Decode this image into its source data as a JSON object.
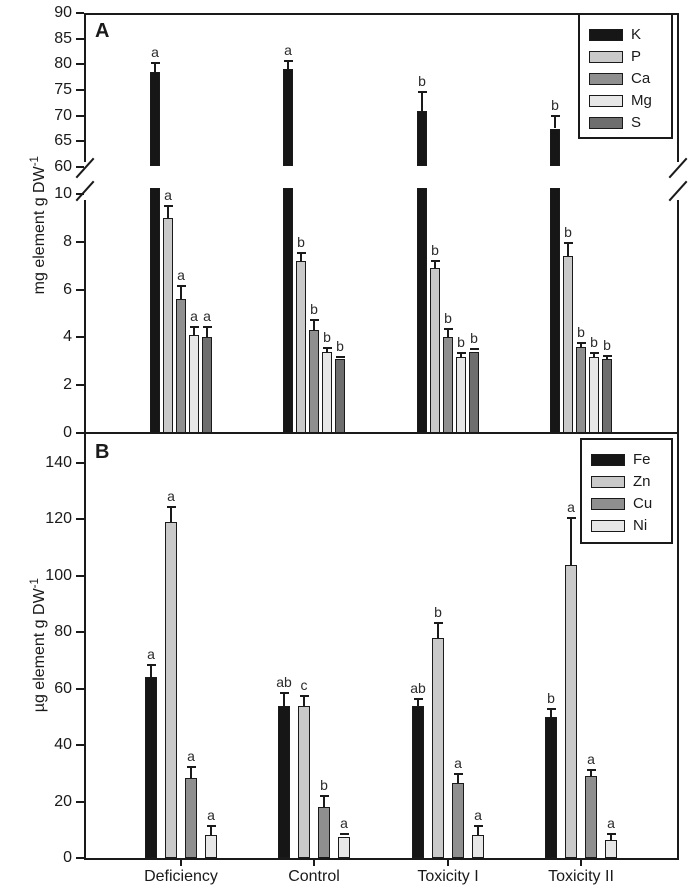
{
  "figure": {
    "panels": [
      {
        "label": "A",
        "ylabel_base": "mg element g DW",
        "ylabel_exp": "-1"
      },
      {
        "label": "B",
        "ylabel_base": "µg element g DW",
        "ylabel_exp": "-1"
      }
    ]
  },
  "chart_data": [
    {
      "type": "bar",
      "panel": "A",
      "ylabel": "mg element g DW-1",
      "categories": [
        "Deficiency",
        "Control",
        "Toxicity I",
        "Toxicity II"
      ],
      "axis_break": true,
      "upper_ylim": [
        60,
        90
      ],
      "upper_yticks": [
        90,
        85,
        80,
        75,
        70,
        65,
        60
      ],
      "lower_ylim": [
        0,
        10
      ],
      "lower_yticks": [
        10,
        8,
        6,
        4,
        2,
        0
      ],
      "legend_position": "upper right",
      "grid": false,
      "series": [
        {
          "name": "K",
          "color": "#161616",
          "values": [
            78.5,
            79.0,
            71.0,
            67.5
          ],
          "errors": [
            1.6,
            1.5,
            3.4,
            2.2
          ],
          "letters": [
            "a",
            "a",
            "b",
            "b"
          ]
        },
        {
          "name": "P",
          "color": "#c9c9c9",
          "values": [
            9.0,
            7.2,
            6.9,
            7.4
          ],
          "errors": [
            0.45,
            0.3,
            0.25,
            0.5
          ],
          "letters": [
            "a",
            "b",
            "b",
            "b"
          ]
        },
        {
          "name": "Ca",
          "color": "#8f8f8f",
          "values": [
            5.6,
            4.3,
            4.0,
            3.6
          ],
          "errors": [
            0.5,
            0.4,
            0.3,
            0.12
          ],
          "letters": [
            "a",
            "b",
            "b",
            "b"
          ]
        },
        {
          "name": "Mg",
          "color": "#e7e7e7",
          "values": [
            4.1,
            3.4,
            3.2,
            3.2
          ],
          "errors": [
            0.3,
            0.12,
            0.12,
            0.12
          ],
          "letters": [
            "a",
            "b",
            "b",
            "b"
          ]
        },
        {
          "name": "S",
          "color": "#6e6e6e",
          "values": [
            4.0,
            3.1,
            3.4,
            3.1
          ],
          "errors": [
            0.4,
            0.05,
            0.08,
            0.1
          ],
          "letters": [
            "a",
            "b",
            "b",
            "b"
          ]
        }
      ]
    },
    {
      "type": "bar",
      "panel": "B",
      "ylabel": "µg element g DW-1",
      "categories": [
        "Deficiency",
        "Control",
        "Toxicity I",
        "Toxicity II"
      ],
      "axis_break": false,
      "ylim": [
        0,
        140
      ],
      "yticks": [
        140,
        120,
        100,
        80,
        60,
        40,
        20,
        0
      ],
      "legend_position": "upper right",
      "grid": false,
      "series": [
        {
          "name": "Fe",
          "color": "#161616",
          "values": [
            64,
            54,
            54,
            50
          ],
          "errors": [
            4,
            4,
            2,
            2.5
          ],
          "letters": [
            "a",
            "ab",
            "ab",
            "b"
          ]
        },
        {
          "name": "Zn",
          "color": "#c9c9c9",
          "values": [
            119,
            54,
            78,
            104
          ],
          "errors": [
            5,
            3,
            5,
            16
          ],
          "letters": [
            "a",
            "c",
            "b",
            "a"
          ]
        },
        {
          "name": "Cu",
          "color": "#8f8f8f",
          "values": [
            28.5,
            18,
            26.5,
            29
          ],
          "errors": [
            3.5,
            3.5,
            3,
            2
          ],
          "letters": [
            "a",
            "b",
            "a",
            "a"
          ]
        },
        {
          "name": "Ni",
          "color": "#e7e7e7",
          "values": [
            8,
            7.5,
            8,
            6.5
          ],
          "errors": [
            3,
            0.5,
            3,
            1.5
          ],
          "letters": [
            "a",
            "a",
            "a",
            "a"
          ]
        }
      ]
    }
  ]
}
